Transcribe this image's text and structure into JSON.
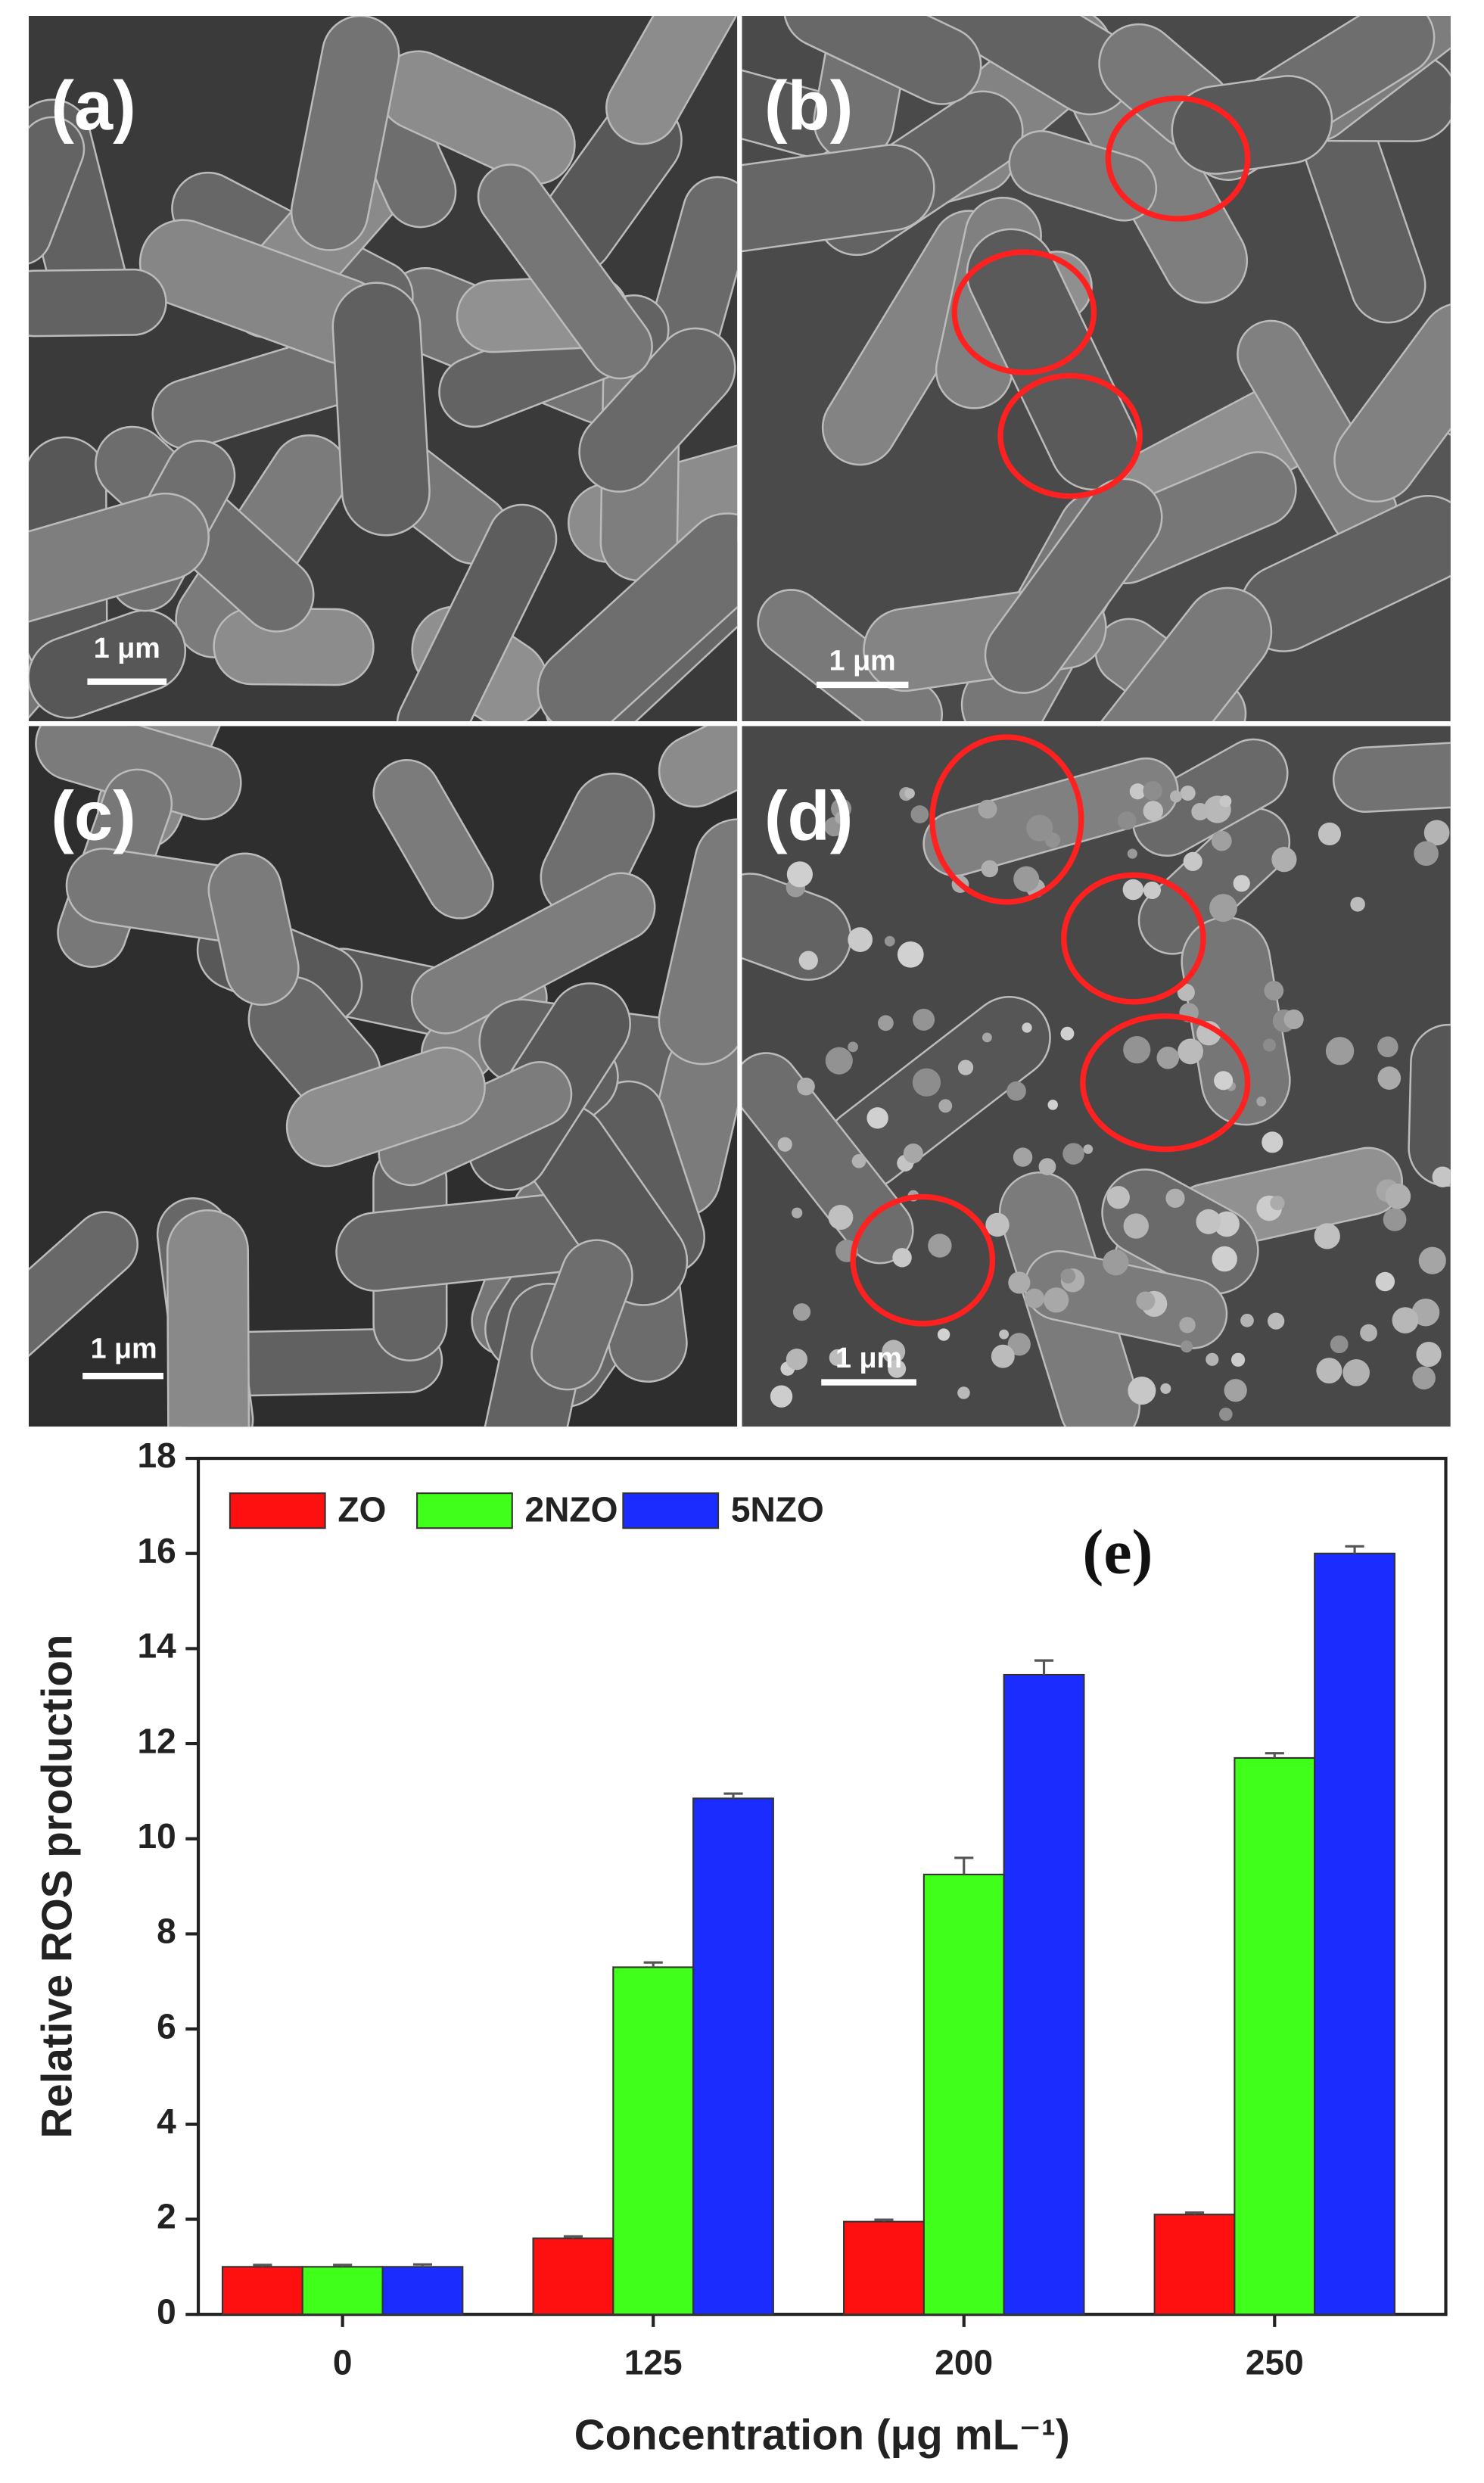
{
  "panels": [
    {
      "label": "(a)",
      "scale_bar": "1 μm"
    },
    {
      "label": "(b)",
      "scale_bar": "1 μm"
    },
    {
      "label": "(c)",
      "scale_bar": "1 μm"
    },
    {
      "label": "(d)",
      "scale_bar": "1 μm"
    }
  ],
  "chart_data": {
    "type": "bar",
    "panel_label": "(e)",
    "y_label": "Relative ROS production",
    "x_label": "Concentration (μg mL⁻¹)",
    "categories": [
      "0",
      "125",
      "200",
      "250"
    ],
    "series": [
      {
        "name": "ZO",
        "color": "#ff1010",
        "values": [
          1,
          1.6,
          1.95,
          2.1
        ],
        "errors": [
          0.04,
          0.04,
          0.04,
          0.04
        ]
      },
      {
        "name": "2NZO",
        "color": "#40ff1a",
        "values": [
          1,
          7.3,
          9.25,
          11.7
        ],
        "errors": [
          0.04,
          0.1,
          0.35,
          0.1
        ]
      },
      {
        "name": "5NZO",
        "color": "#1a2cff",
        "values": [
          1,
          10.85,
          13.45,
          16
        ],
        "errors": [
          0.05,
          0.1,
          0.3,
          0.15
        ]
      }
    ],
    "ylim": [
      0,
      18
    ],
    "yticks": [
      0,
      2,
      4,
      6,
      8,
      10,
      12,
      14,
      16,
      18
    ],
    "legend": "upper left"
  }
}
